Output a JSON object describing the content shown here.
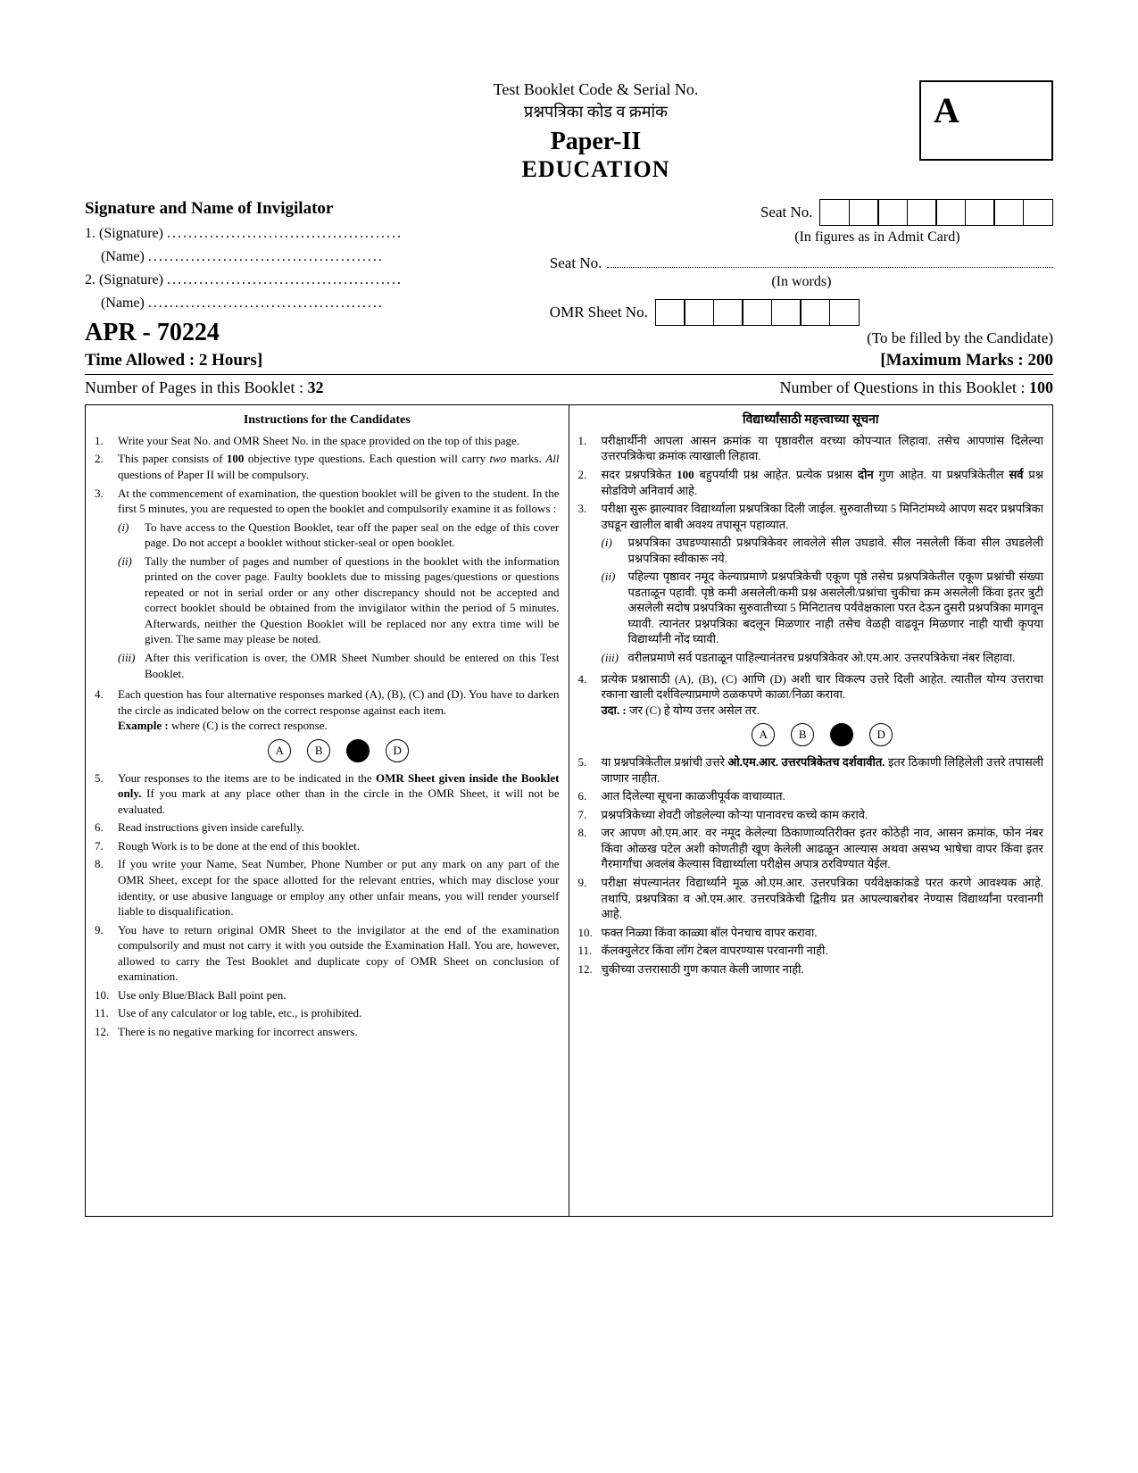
{
  "header": {
    "line1_en": "Test Booklet Code & Serial No.",
    "line2_mr": "प्रश्नपत्रिका कोड व क्रमांक",
    "paper": "Paper-II",
    "subject": "EDUCATION",
    "code_letter": "A"
  },
  "sig": {
    "title": "Signature and Name of Invigilator",
    "sig1": "1. (Signature)",
    "name": "(Name)",
    "sig2": "2. (Signature)",
    "dots": "............................................"
  },
  "seat": {
    "label": "Seat No.",
    "box_count": 8,
    "fig_caption": "(In figures as in Admit Card)",
    "words_label": "Seat No.",
    "words_caption": "(In words)",
    "omr_label": "OMR Sheet No.",
    "omr_box_count": 7,
    "fill_caption": "(To be filled by the Candidate)"
  },
  "exam": {
    "code": "APR - 70224",
    "time_label": "Time Allowed : 2 Hours]",
    "marks_label": "[Maximum Marks : 200",
    "pages_label": "Number of Pages in this Booklet : ",
    "pages_val": "32",
    "qcount_label": "Number of Questions in this Booklet : ",
    "qcount_val": "100"
  },
  "instructions_en": {
    "heading": "Instructions for the Candidates",
    "items": [
      "Write your Seat No. and OMR Sheet No. in the space provided on the top of this page.",
      "This paper consists of <b>100</b> objective type questions. Each question will carry <i>two</i> marks. <i>All</i> questions of Paper II will be compulsory.",
      "At the commencement of examination, the question booklet will be given to the student. In the first 5 minutes, you are requested to open the booklet and compulsorily examine it as follows :",
      "Each question has four alternative responses marked (A), (B), (C) and (D). You have to darken the circle as indicated below on the correct response against each item.<br><b>Example :</b> where (C) is the correct response.",
      "Your responses to the items are to be indicated in the <b>OMR Sheet given inside the Booklet only.</b> If you mark at any place other than in the circle in the OMR Sheet, it will not be evaluated.",
      "Read instructions given inside carefully.",
      "Rough Work is to be done at the end of this booklet.",
      "If you write your Name, Seat Number, Phone Number or put any mark on any part of the OMR Sheet, except for the space allotted for the relevant entries, which may disclose your identity, or use abusive language or employ any other unfair means, you will render yourself liable to disqualification.",
      "You have to return original OMR Sheet to the invigilator at the end of the examination compulsorily and must not carry it with you outside the Examination Hall. You are, however, allowed to carry the Test Booklet and duplicate copy of OMR Sheet on conclusion of examination.",
      "Use only Blue/Black Ball point pen.",
      "Use of any calculator or log table, etc., is prohibited.",
      "There is no negative marking for incorrect answers."
    ],
    "sub3": [
      "To have access to the Question Booklet, tear off the paper seal on the edge of this cover page. Do not accept a booklet without sticker-seal or open booklet.",
      "Tally the number of pages and number of questions in the booklet with the information printed on the cover page. Faulty booklets due to missing pages/questions or questions repeated or not in serial order or any other discrepancy should not be accepted and correct booklet should be obtained from the invigilator within the period of 5 minutes. Afterwards, neither the Question Booklet will be replaced nor any extra time will be given. The same may please be noted.",
      "After this verification is over, the OMR Sheet Number should be entered on this Test Booklet."
    ]
  },
  "instructions_mr": {
    "heading": "विद्यार्थ्यांसाठी महत्त्वाच्या सूचना",
    "items": [
      "परीक्षार्थीनी आपला आसन क्रमांक या पृष्ठावरील वरच्या कोपऱ्यात लिहावा. तसेच आपणांस दिलेल्या उत्तरपत्रिकेचा क्रमांक त्याखाली लिहावा.",
      "सदर प्रश्नपत्रिकेत <b>100</b> बहुपर्यायी प्रश्न आहेत. प्रत्येक प्रश्नास <b>दोन</b> गुण आहेत. या प्रश्नपत्रिकेतील <b>सर्व</b> प्रश्न सोडविणे अनिवार्य आहे.",
      "परीक्षा सुरू झाल्यावर विद्यार्थ्याला प्रश्नपत्रिका दिली जाईल. सुरुवातीच्या 5 मिनिटांमध्ये आपण सदर प्रश्नपत्रिका उघडून खालील बाबी अवश्य तपासून पहाव्यात.",
      "प्रत्येक प्रश्नासाठी (A), (B), (C) आणि (D) अशी चार विकल्प उत्तरे दिली आहेत. त्यातील योग्य उत्तराचा रकाना खाली दर्शविल्याप्रमाणे ठळकपणे काळा/निळा करावा.<br><b>उदा. :</b> जर (C) हे योग्य उत्तर असेल तर.",
      "या प्रश्नपत्रिकेतील प्रश्नांची उत्तरे <b>ओ.एम.आर. उत्तरपत्रिकेतच दर्शवावीत.</b> इतर ठिकाणी लिहिलेली उत्तरे तपासली जाणार नाहीत.",
      "आत दिलेल्या सूचना काळजीपूर्वक वाचाव्यात.",
      "प्रश्नपत्रिकेच्या शेवटी जोडलेल्या कोऱ्या पानावरच कच्चे काम करावे.",
      "जर आपण ओ.एम.आर. वर नमूद केलेल्या ठिकाणाव्यतिरीक्त इतर कोठेही नाव, आसन क्रमांक, फोन नंबर किंवा ओळख पटेल अशी कोणतीही खूण केलेली आढळून आल्यास अथवा असभ्य भाषेचा वापर किंवा इतर गैरमार्गांचा अवलंब केल्यास विद्यार्थ्याला परीक्षेस अपात्र ठरविण्यात येईल.",
      "परीक्षा संपल्यानंतर विद्यार्थ्याने मूळ ओ.एम.आर. उत्तरपत्रिका पर्यवेक्षकांकडे परत करणे आवश्यक आहे. तथापि, प्रश्नपत्रिका व ओ.एम.आर. उत्तरपत्रिकेची द्वितीय प्रत आपल्याबरोबर नेण्यास विद्यार्थ्यांना परवानगी आहे.",
      "फक्त निळ्या किंवा काळ्या बॉल पेनचाच वापर करावा.",
      "कॅलक्युलेटर किंवा लॉग टेबल वापरण्यास परवानगी नाही.",
      "चुकीच्या उत्तरासाठी गुण कपात केली जाणार नाही."
    ],
    "sub3": [
      "प्रश्नपत्रिका उघडण्यासाठी प्रश्नपत्रिकेवर लावलेले सील उघडावे. सील नसलेली किंवा सील उघडलेली प्रश्नपत्रिका स्वीकारू नये.",
      "पहिल्या पृष्ठावर नमूद केल्याप्रमाणे प्रश्नपत्रिकेची एकूण पृष्ठे तसेच प्रश्नपत्रिकेतील एकूण प्रश्नांची संख्या पडताळून पहावी. पृष्ठे कमी असलेली/कमी प्रश्न असलेली/प्रश्नांचा चुकीचा क्रम असलेली किंवा इतर त्रुटी असलेली सदोष प्रश्नपत्रिका सुरुवातीच्या 5 मिनिटातच पर्यवेक्षकाला परत देऊन दुसरी प्रश्नपत्रिका मागवून घ्यावी. त्यानंतर प्रश्नपत्रिका बदलून मिळणार नाही तसेच वेळही वाढवून मिळणार नाही याची कृपया विद्यार्थ्यांनी नोंद घ्यावी.",
      "वरीलप्रमाणे सर्व पडताळून पाहिल्यानंतरच प्रश्नपत्रिकेवर ओ.एम.आर. उत्तरपत्रिकेचा नंबर लिहावा."
    ]
  },
  "bubbles": [
    "A",
    "B",
    "C",
    "D"
  ],
  "bubble_filled_index": 2,
  "roman": [
    "(i)",
    "(ii)",
    "(iii)"
  ]
}
